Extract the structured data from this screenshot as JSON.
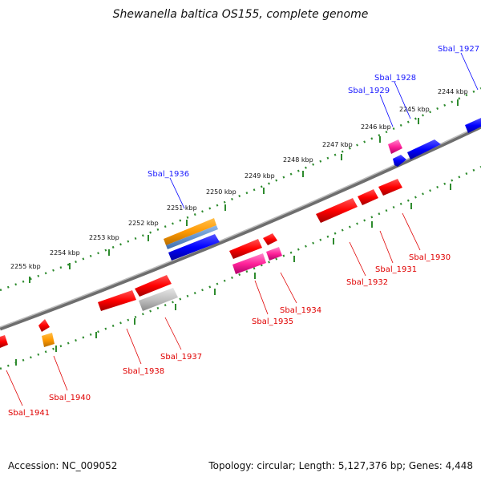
{
  "title": "Shewanella baltica OS155, complete genome",
  "footer": {
    "accession": "Accession: NC_009052",
    "summary": "Topology: circular; Length: 5,127,376 bp; Genes: 4,448"
  },
  "map": {
    "kbp_labels": [
      "2244 kbp",
      "2245 kbp",
      "2246 kbp",
      "2247 kbp",
      "2248 kbp",
      "2249 kbp",
      "2250 kbp",
      "2251 kbp",
      "2252 kbp",
      "2253 kbp",
      "2254 kbp",
      "2255 kbp"
    ],
    "forward_genes": [
      {
        "label": "Sbal_1927",
        "color": "#0000ff"
      },
      {
        "label": "Sbal_1928",
        "color": "#0000ff"
      },
      {
        "label": "Sbal_1929",
        "color": "#0000ff"
      },
      {
        "label": "Sbal_1936",
        "color": "#0000ff"
      }
    ],
    "reverse_genes": [
      {
        "label": "Sbal_1930",
        "color": "#ff0000"
      },
      {
        "label": "Sbal_1931",
        "color": "#ff0000"
      },
      {
        "label": "Sbal_1932",
        "color": "#ff0000"
      },
      {
        "label": "Sbal_1934",
        "color": "#ff0000"
      },
      {
        "label": "Sbal_1935",
        "color": "#ff0000"
      },
      {
        "label": "Sbal_1937",
        "color": "#ff0000"
      },
      {
        "label": "Sbal_1938",
        "color": "#ff0000"
      },
      {
        "label": "Sbal_1940",
        "color": "#ff0000"
      },
      {
        "label": "Sbal_1941",
        "color": "#ff0000"
      }
    ],
    "colors": {
      "backbone": "#808080",
      "tick_dots": "#2e8b2e",
      "forward": "#0000ff",
      "reverse": "#ff0000",
      "pink": "#ff33aa",
      "orange": "#ff9900",
      "gray": "#bbbbbb"
    }
  }
}
